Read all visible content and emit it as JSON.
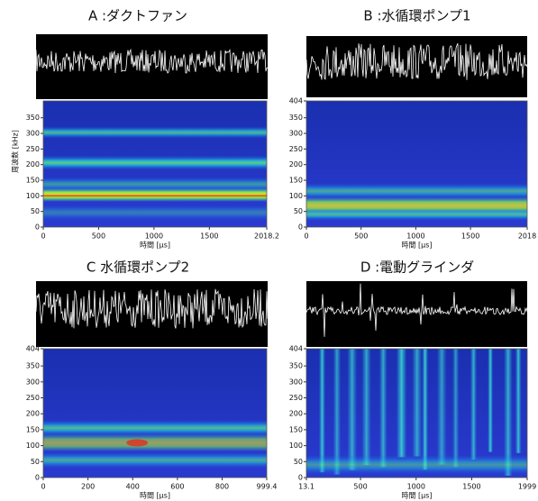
{
  "chart_data": [
    {
      "type": "spectrogram",
      "title": "A :ダクトファン",
      "xlabel": "時間 [μs]",
      "ylabel": "周波数 [kHz]",
      "xlim": [
        0,
        2018.2
      ],
      "xticks": [
        0,
        500,
        1000,
        1500,
        2018.2
      ],
      "ylim": [
        0,
        404
      ],
      "yticks": [
        0,
        50,
        100,
        150,
        200,
        250,
        300,
        350
      ]
    },
    {
      "type": "spectrogram",
      "title": "B :水循環ポンプ1",
      "xlabel": "時間 [μs]",
      "xlim": [
        0,
        2018
      ],
      "xticks": [
        0,
        500,
        1000,
        1500,
        2018
      ],
      "ylim": [
        0,
        404
      ],
      "yticks": [
        0,
        50,
        100,
        150,
        200,
        250,
        300,
        350,
        404
      ]
    },
    {
      "type": "spectrogram",
      "title": "C 水循環ポンプ2",
      "xlabel": "時間 [μs]",
      "xlim": [
        0,
        999.4
      ],
      "xticks": [
        0,
        200,
        400,
        600,
        800,
        999.4
      ],
      "ylim": [
        0,
        404
      ],
      "yticks": [
        0,
        50,
        100,
        150,
        200,
        250,
        300,
        350,
        404
      ]
    },
    {
      "type": "spectrogram",
      "title": "D :電動グラインダ",
      "xlabel": "時間 [μs]",
      "xlim": [
        13.1,
        1999
      ],
      "xticks": [
        13.1,
        500,
        1000,
        1500,
        1999
      ],
      "ylim": [
        0,
        404
      ],
      "yticks": [
        0,
        50,
        100,
        150,
        200,
        250,
        300,
        350,
        404
      ]
    }
  ]
}
